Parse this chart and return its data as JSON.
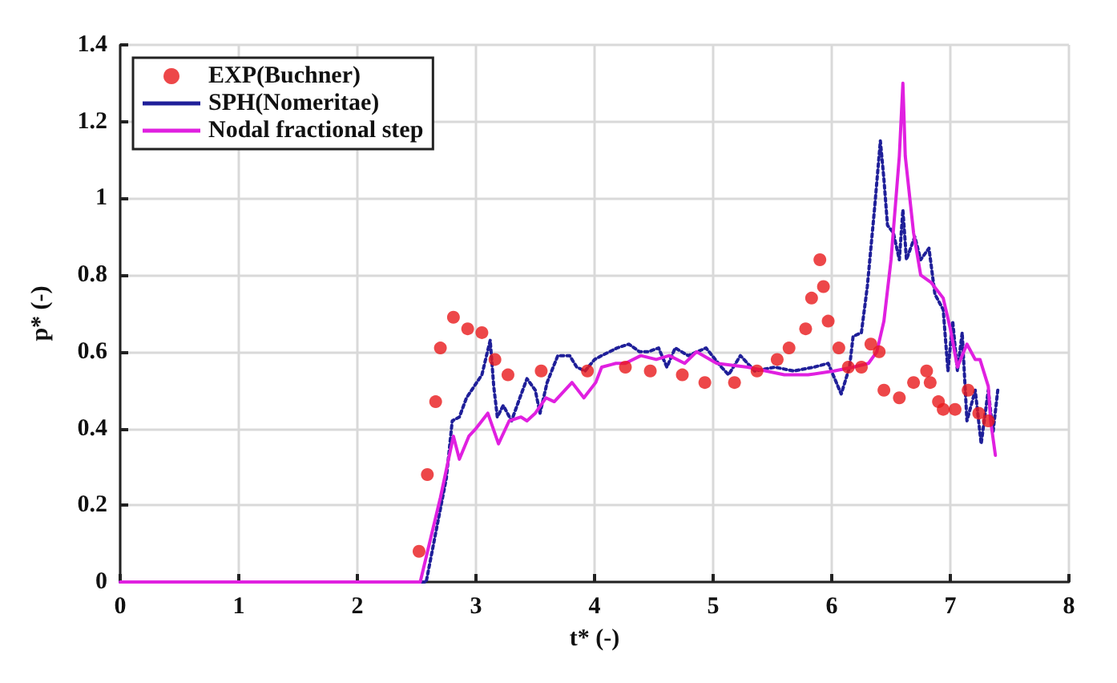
{
  "chart_data": {
    "type": "line",
    "xlabel": "t* (-)",
    "ylabel": "p* (-)",
    "xlim": [
      0,
      8
    ],
    "xticks": [
      0,
      1,
      2,
      3,
      4,
      5,
      6,
      7,
      8
    ],
    "ylim": [
      0,
      1.4
    ],
    "yticks": [
      0,
      0.2,
      0.4,
      0.6,
      0.8,
      1,
      1.2,
      1.4
    ],
    "grid": true,
    "legend": "top left",
    "series": [
      {
        "name": "EXP(Buchner)",
        "type": "scatter",
        "marker": "circle",
        "color": "#e8191c",
        "x": [
          2.52,
          2.59,
          2.66,
          2.7,
          2.81,
          2.93,
          3.05,
          3.16,
          3.27,
          3.55,
          3.94,
          4.26,
          4.47,
          4.74,
          4.93,
          5.18,
          5.37,
          5.54,
          5.64,
          5.78,
          5.83,
          5.9,
          5.93,
          5.97,
          6.06,
          6.14,
          6.25,
          6.33,
          6.4,
          6.44,
          6.57,
          6.69,
          6.8,
          6.83,
          6.9,
          6.94,
          7.04,
          7.15,
          7.24,
          7.32
        ],
        "values": [
          0.08,
          0.28,
          0.47,
          0.61,
          0.69,
          0.66,
          0.65,
          0.58,
          0.54,
          0.55,
          0.55,
          0.56,
          0.55,
          0.54,
          0.52,
          0.52,
          0.55,
          0.58,
          0.61,
          0.66,
          0.74,
          0.84,
          0.77,
          0.68,
          0.61,
          0.56,
          0.56,
          0.62,
          0.6,
          0.5,
          0.48,
          0.52,
          0.55,
          0.52,
          0.47,
          0.45,
          0.45,
          0.5,
          0.44,
          0.42
        ]
      },
      {
        "name": "SPH(Nomeritae)",
        "marker": "none",
        "line_style": "dotted",
        "color": "#1f1f99",
        "x": [
          0,
          2.58,
          2.75,
          2.8,
          2.86,
          2.92,
          3.05,
          3.12,
          3.15,
          3.18,
          3.23,
          3.3,
          3.37,
          3.43,
          3.5,
          3.54,
          3.6,
          3.69,
          3.79,
          3.85,
          3.92,
          4.0,
          4.06,
          4.19,
          4.29,
          4.38,
          4.45,
          4.54,
          4.61,
          4.68,
          4.79,
          4.94,
          5.07,
          5.13,
          5.23,
          5.35,
          5.52,
          5.68,
          5.85,
          5.97,
          6.08,
          6.15,
          6.18,
          6.25,
          6.3,
          6.36,
          6.41,
          6.44,
          6.47,
          6.52,
          6.57,
          6.6,
          6.63,
          6.7,
          6.75,
          6.82,
          6.87,
          6.94,
          6.98,
          7.02,
          7.06,
          7.1,
          7.14,
          7.21,
          7.26,
          7.32,
          7.36,
          7.4
        ],
        "values": [
          0,
          0,
          0.27,
          0.42,
          0.43,
          0.48,
          0.54,
          0.63,
          0.51,
          0.43,
          0.46,
          0.42,
          0.48,
          0.53,
          0.5,
          0.44,
          0.52,
          0.59,
          0.59,
          0.56,
          0.55,
          0.58,
          0.59,
          0.61,
          0.62,
          0.6,
          0.6,
          0.61,
          0.56,
          0.61,
          0.59,
          0.61,
          0.56,
          0.54,
          0.59,
          0.55,
          0.56,
          0.55,
          0.56,
          0.57,
          0.49,
          0.56,
          0.64,
          0.65,
          0.77,
          0.97,
          1.15,
          1.05,
          0.93,
          0.91,
          0.84,
          0.97,
          0.84,
          0.9,
          0.84,
          0.87,
          0.75,
          0.71,
          0.55,
          0.68,
          0.55,
          0.65,
          0.42,
          0.5,
          0.36,
          0.5,
          0.39,
          0.5
        ]
      },
      {
        "name": "Nodal fractional step",
        "marker": "none",
        "line_style": "solid",
        "color": "#e020e0",
        "x": [
          0,
          2.53,
          2.7,
          2.81,
          2.86,
          2.94,
          3.0,
          3.1,
          3.19,
          3.28,
          3.38,
          3.43,
          3.5,
          3.59,
          3.66,
          3.81,
          3.91,
          4.01,
          4.06,
          4.18,
          4.26,
          4.39,
          4.52,
          4.63,
          4.76,
          4.86,
          5.03,
          5.29,
          5.6,
          5.8,
          6.02,
          6.18,
          6.31,
          6.38,
          6.44,
          6.5,
          6.57,
          6.6,
          6.62,
          6.69,
          6.75,
          6.84,
          6.94,
          7.0,
          7.06,
          7.14,
          7.21,
          7.25,
          7.32,
          7.34,
          7.38
        ],
        "values": [
          0,
          0,
          0.22,
          0.38,
          0.32,
          0.38,
          0.4,
          0.44,
          0.36,
          0.42,
          0.43,
          0.42,
          0.44,
          0.48,
          0.47,
          0.52,
          0.48,
          0.52,
          0.56,
          0.57,
          0.57,
          0.59,
          0.58,
          0.59,
          0.57,
          0.6,
          0.57,
          0.56,
          0.54,
          0.54,
          0.55,
          0.56,
          0.57,
          0.6,
          0.68,
          0.84,
          1.11,
          1.3,
          1.11,
          0.91,
          0.8,
          0.78,
          0.74,
          0.66,
          0.56,
          0.62,
          0.58,
          0.58,
          0.51,
          0.42,
          0.33
        ]
      }
    ]
  }
}
